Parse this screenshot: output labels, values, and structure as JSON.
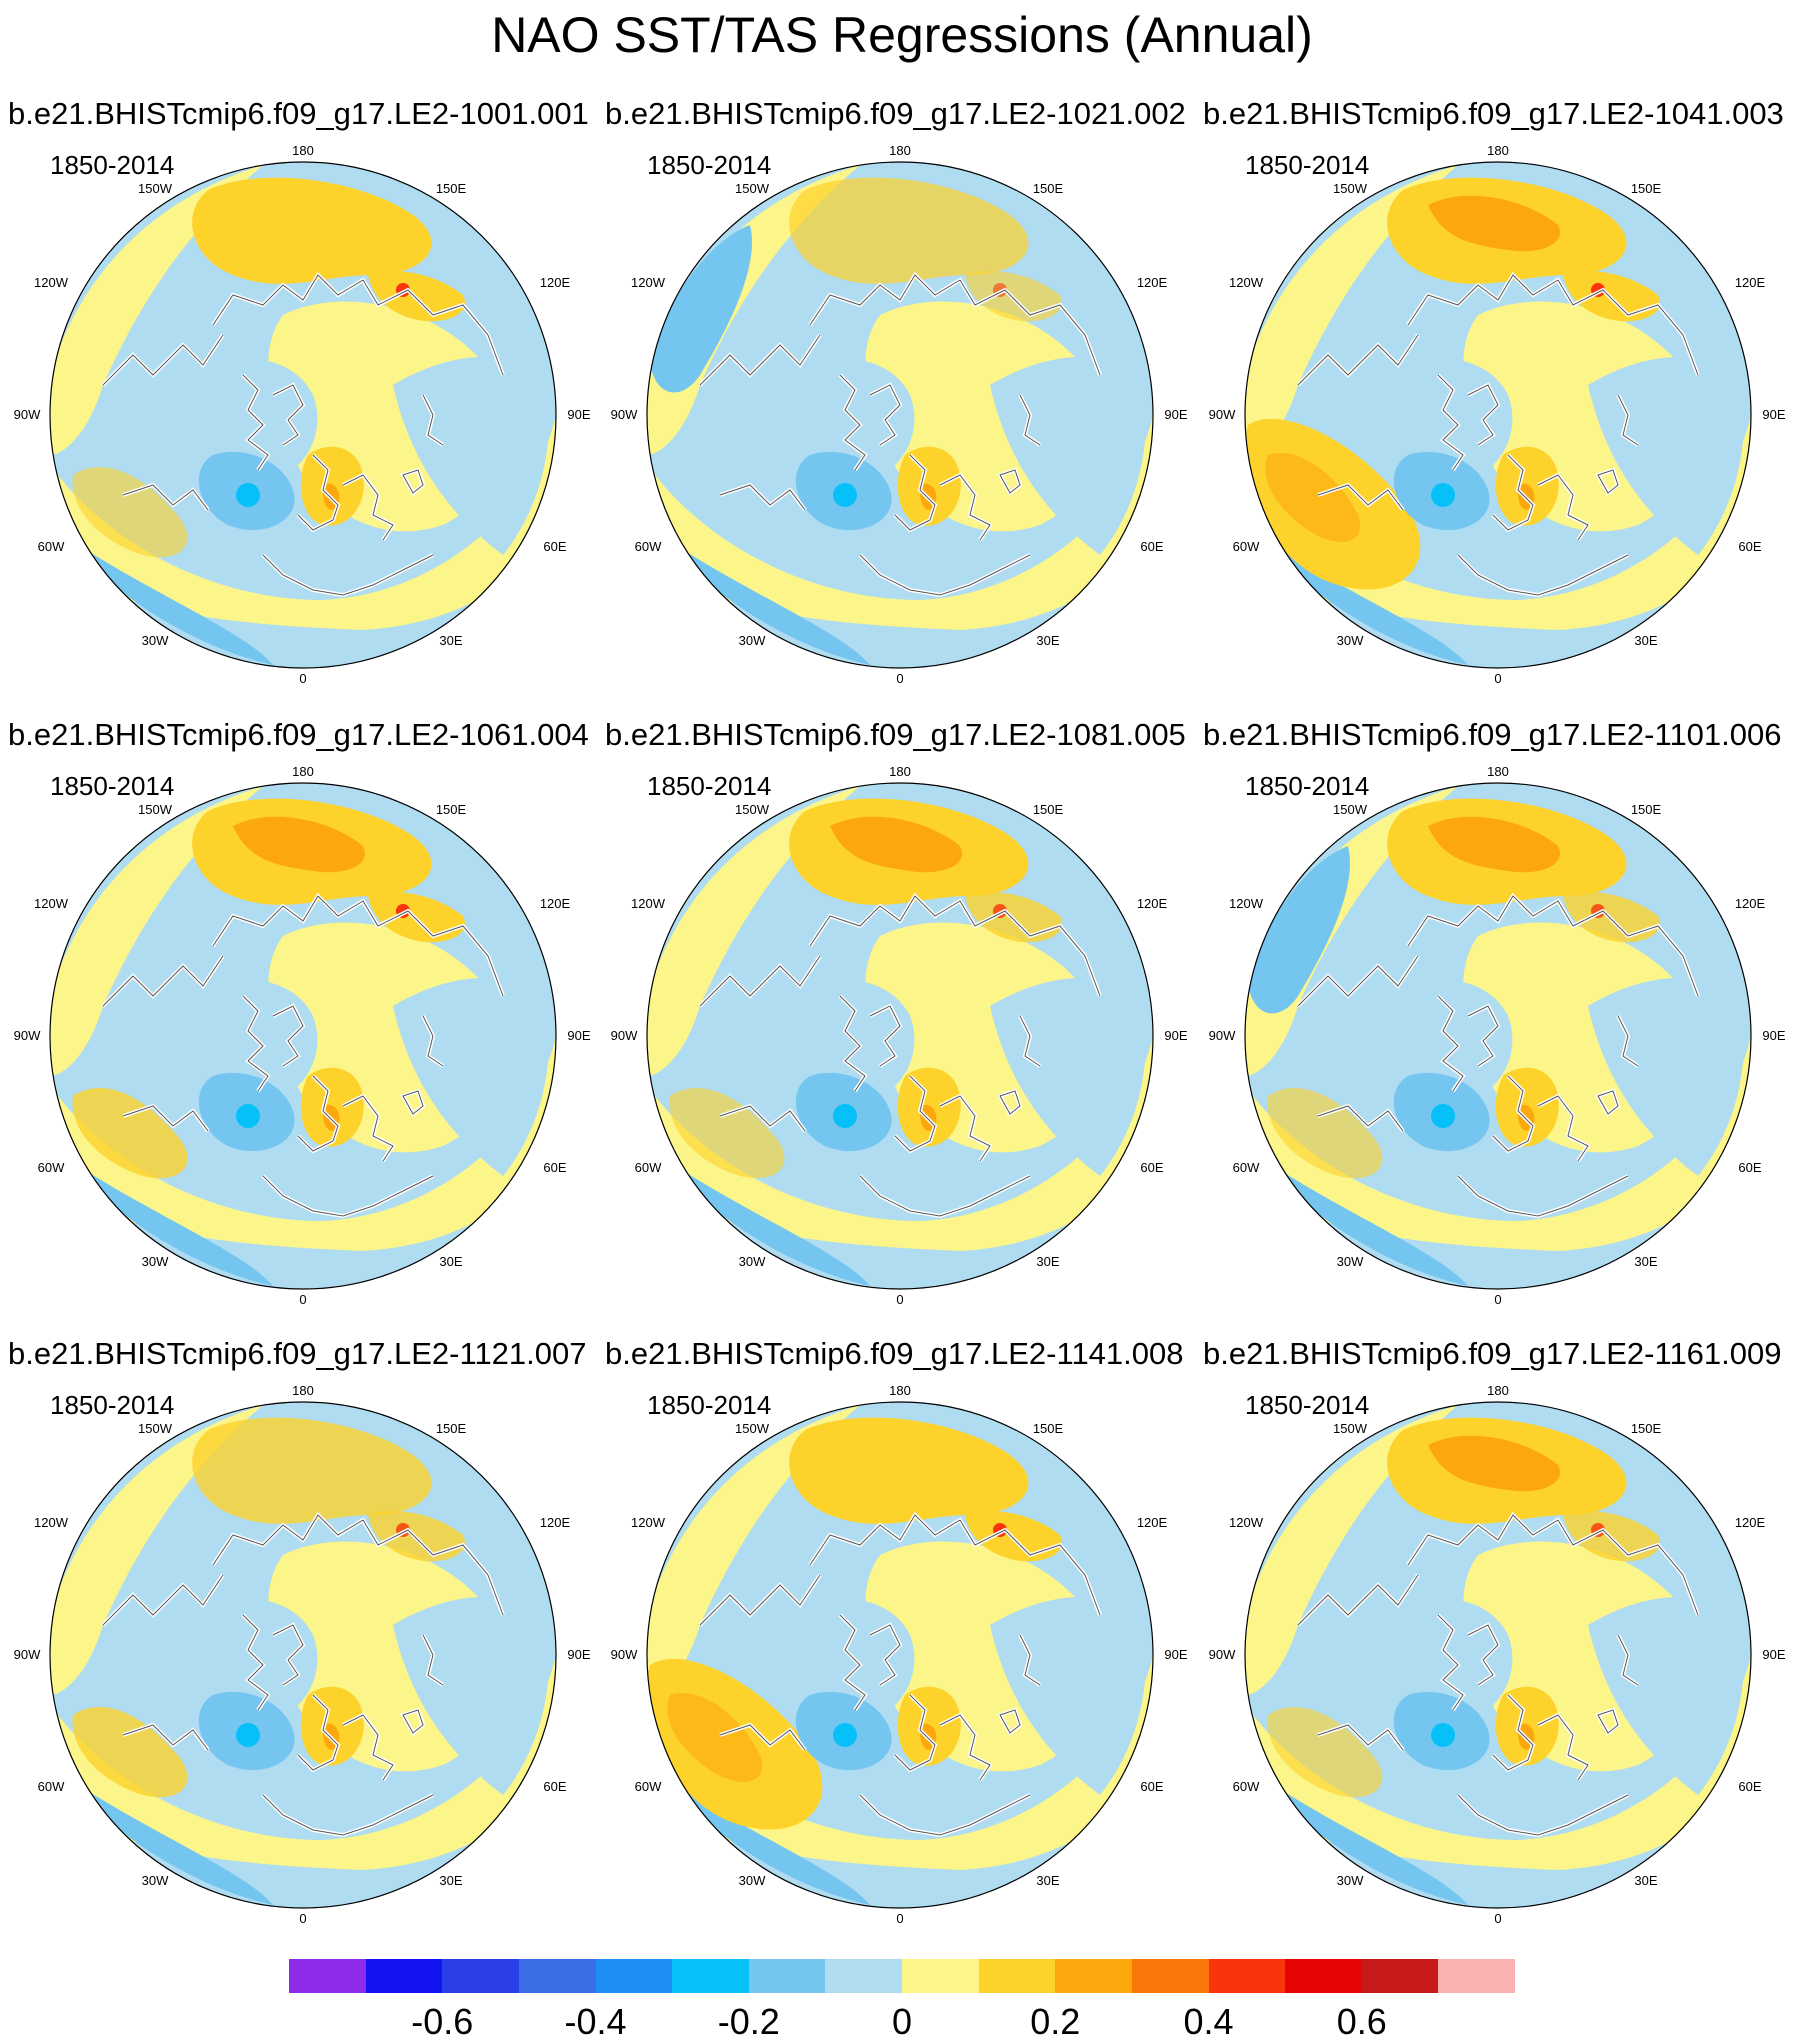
{
  "title": "NAO SST/TAS Regressions (Annual)",
  "lon_labels": [
    {
      "id": "180",
      "text": "180"
    },
    {
      "id": "150E",
      "text": "150E"
    },
    {
      "id": "120E",
      "text": "120E"
    },
    {
      "id": "90E",
      "text": "90E"
    },
    {
      "id": "60E",
      "text": "60E"
    },
    {
      "id": "30E",
      "text": "30E"
    },
    {
      "id": "0",
      "text": "0"
    },
    {
      "id": "30W",
      "text": "30W"
    },
    {
      "id": "60W",
      "text": "60W"
    },
    {
      "id": "90W",
      "text": "90W"
    },
    {
      "id": "120W",
      "text": "120W"
    },
    {
      "id": "150W",
      "text": "150W"
    }
  ],
  "panels": [
    {
      "title": "b.e21.BHISTcmip6.f09_g17.LE2-1001.001",
      "period": "1850-2014",
      "variant": 0
    },
    {
      "title": "b.e21.BHISTcmip6.f09_g17.LE2-1021.002",
      "period": "1850-2014",
      "variant": 1
    },
    {
      "title": "b.e21.BHISTcmip6.f09_g17.LE2-1041.003",
      "period": "1850-2014",
      "variant": 2
    },
    {
      "title": "b.e21.BHISTcmip6.f09_g17.LE2-1061.004",
      "period": "1850-2014",
      "variant": 3
    },
    {
      "title": "b.e21.BHISTcmip6.f09_g17.LE2-1081.005",
      "period": "1850-2014",
      "variant": 4
    },
    {
      "title": "b.e21.BHISTcmip6.f09_g17.LE2-1101.006",
      "period": "1850-2014",
      "variant": 5
    },
    {
      "title": "b.e21.BHISTcmip6.f09_g17.LE2-1121.007",
      "period": "1850-2014",
      "variant": 6
    },
    {
      "title": "b.e21.BHISTcmip6.f09_g17.LE2-1141.008",
      "period": "1850-2014",
      "variant": 7
    },
    {
      "title": "b.e21.BHISTcmip6.f09_g17.LE2-1161.009",
      "period": "1850-2014",
      "variant": 8
    }
  ],
  "colorbar": {
    "colors": [
      "#8e2ce9",
      "#1414f2",
      "#2a3fe6",
      "#3a6fe8",
      "#1f8ff5",
      "#06c0f7",
      "#74c6f0",
      "#b0dcf1",
      "#fbf58a",
      "#fdd22a",
      "#fca80c",
      "#fa780a",
      "#f8350c",
      "#e60505",
      "#c81a1a",
      "#f9b1b1"
    ],
    "labels": [
      "-0.6",
      "-0.4",
      "-0.2",
      "0",
      "0.2",
      "0.4",
      "0.6"
    ],
    "label_values": [
      -0.6,
      -0.4,
      -0.2,
      0,
      0.2,
      0.4,
      0.6
    ],
    "range": [
      -0.8,
      0.8
    ]
  },
  "palette": {
    "ocean_light_blue": "#b0dcf1",
    "medium_blue": "#74c6f0",
    "cyan": "#06c0f7",
    "yellow": "#fbf58a",
    "gold": "#fdd22a",
    "orange": "#fca80c",
    "red": "#f8350c",
    "coast": "#ffffff",
    "coast_outline": "#555555"
  }
}
